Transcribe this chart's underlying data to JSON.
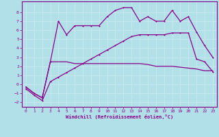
{
  "xlabel": "Windchill (Refroidissement éolien,°C)",
  "background_color": "#b2e0e8",
  "grid_color": "#c8e8f0",
  "line_color": "#880088",
  "xlim": [
    -0.5,
    23.5
  ],
  "ylim": [
    -2.5,
    9.2
  ],
  "yticks": [
    -2,
    -1,
    0,
    1,
    2,
    3,
    4,
    5,
    6,
    7,
    8
  ],
  "xticks": [
    0,
    1,
    2,
    3,
    4,
    5,
    6,
    7,
    8,
    9,
    10,
    11,
    12,
    13,
    14,
    15,
    16,
    17,
    18,
    19,
    20,
    21,
    22,
    23
  ],
  "line1_x": [
    0,
    1,
    2,
    3,
    4,
    5,
    6,
    7,
    8,
    9,
    10,
    11,
    12,
    13,
    14,
    15,
    16,
    17,
    18,
    19,
    20,
    21,
    22,
    23
  ],
  "line1_y": [
    -0.3,
    -1.0,
    -1.5,
    2.5,
    7.0,
    5.5,
    6.5,
    6.5,
    6.5,
    6.5,
    7.5,
    8.2,
    8.5,
    8.5,
    7.0,
    7.5,
    7.0,
    7.0,
    8.2,
    7.0,
    7.5,
    5.8,
    4.3,
    3.0
  ],
  "line2_x": [
    0,
    1,
    2,
    3,
    4,
    5,
    6,
    7,
    8,
    9,
    10,
    11,
    12,
    13,
    14,
    15,
    16,
    17,
    18,
    19,
    20,
    21,
    22,
    23
  ],
  "line2_y": [
    -0.3,
    -1.0,
    -1.5,
    2.5,
    2.5,
    2.5,
    2.3,
    2.3,
    2.3,
    2.3,
    2.3,
    2.3,
    2.3,
    2.3,
    2.3,
    2.2,
    2.0,
    2.0,
    2.0,
    1.9,
    1.8,
    1.7,
    1.5,
    1.5
  ],
  "line3_x": [
    0,
    1,
    2,
    3,
    4,
    5,
    6,
    7,
    8,
    9,
    10,
    11,
    12,
    13,
    14,
    15,
    16,
    17,
    18,
    19,
    20,
    21,
    22,
    23
  ],
  "line3_y": [
    -0.5,
    -1.2,
    -1.8,
    0.3,
    0.8,
    1.3,
    1.8,
    2.3,
    2.8,
    3.3,
    3.8,
    4.3,
    4.8,
    5.3,
    5.5,
    5.5,
    5.5,
    5.5,
    5.7,
    5.7,
    5.7,
    2.8,
    2.5,
    1.4
  ]
}
